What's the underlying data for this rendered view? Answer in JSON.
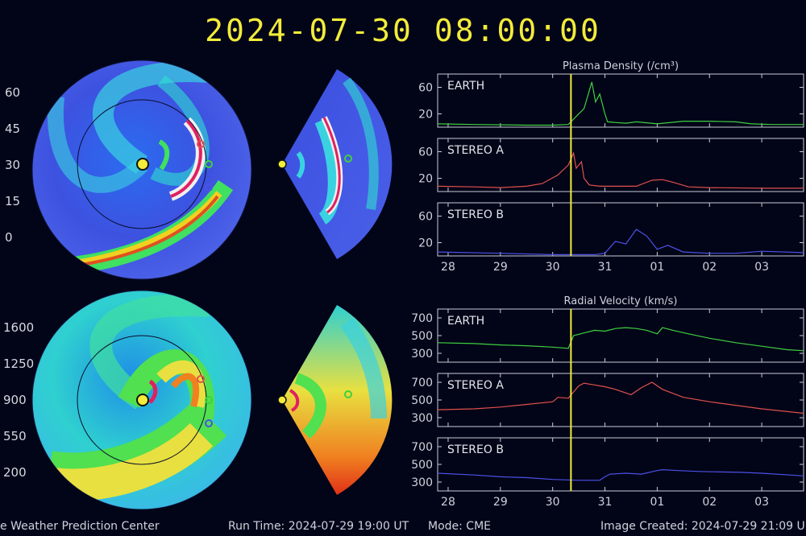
{
  "header": {
    "datetime": "2024-07-30  08:00:00"
  },
  "density_scale": [
    "60",
    "45",
    "30",
    "15",
    "0"
  ],
  "velocity_scale": [
    "1600",
    "1250",
    "900",
    "550",
    "200"
  ],
  "footer": {
    "center": "e Weather Prediction Center",
    "run_time": "Run Time: 2024-07-29 19:00 UT",
    "mode": "Mode: CME",
    "created": "Image Created: 2024-07-29 21:09 U"
  },
  "colors": {
    "earth": "#3fd03f",
    "stereo_a": "#e0524c",
    "stereo_b": "#4b52e6",
    "marker": "#f2ec3a"
  },
  "chart_data": [
    {
      "type": "line",
      "title": "Plasma Density (/cm³)",
      "x_ticks": [
        "28",
        "29",
        "30",
        "31",
        "01",
        "02",
        "03"
      ],
      "x_range": [
        27.8,
        34.8
      ],
      "current_time": 30.35,
      "panels": [
        {
          "name": "EARTH",
          "ylim": [
            0,
            80
          ],
          "y_ticks": [
            20,
            60
          ],
          "color": "#3fd03f",
          "x": [
            27.8,
            28.5,
            29.5,
            30.0,
            30.3,
            30.4,
            30.6,
            30.75,
            30.82,
            30.9,
            31.0,
            31.05,
            31.2,
            31.4,
            31.6,
            32.0,
            32.5,
            33.0,
            33.5,
            33.8,
            34.2,
            34.8
          ],
          "y": [
            5,
            4,
            3,
            3,
            4,
            12,
            28,
            68,
            38,
            50,
            20,
            8,
            7,
            6,
            8,
            5,
            9,
            9,
            8,
            5,
            4,
            4
          ]
        },
        {
          "name": "STEREO A",
          "ylim": [
            0,
            80
          ],
          "y_ticks": [
            20,
            60
          ],
          "color": "#e0524c",
          "x": [
            27.8,
            28.5,
            29.0,
            29.5,
            29.8,
            30.1,
            30.3,
            30.4,
            30.45,
            30.55,
            30.6,
            30.7,
            30.9,
            31.2,
            31.6,
            31.9,
            32.1,
            32.3,
            32.6,
            33.0,
            34.0,
            34.8
          ],
          "y": [
            8,
            7,
            6,
            8,
            12,
            25,
            40,
            58,
            35,
            45,
            20,
            10,
            8,
            8,
            8,
            17,
            18,
            14,
            7,
            6,
            5,
            5
          ]
        },
        {
          "name": "STEREO B",
          "ylim": [
            0,
            80
          ],
          "y_ticks": [
            20,
            60
          ],
          "color": "#4b52e6",
          "x": [
            27.8,
            29.0,
            30.0,
            30.8,
            31.0,
            31.2,
            31.4,
            31.6,
            31.8,
            32.0,
            32.2,
            32.5,
            33.0,
            33.5,
            34.0,
            34.8
          ],
          "y": [
            6,
            4,
            2,
            2,
            4,
            22,
            18,
            40,
            30,
            10,
            16,
            6,
            4,
            4,
            7,
            5
          ]
        }
      ]
    },
    {
      "type": "line",
      "title": "Radial Velocity (km/s)",
      "x_ticks": [
        "28",
        "29",
        "30",
        "31",
        "01",
        "02",
        "03"
      ],
      "x_range": [
        27.8,
        34.8
      ],
      "current_time": 30.35,
      "panels": [
        {
          "name": "EARTH",
          "ylim": [
            200,
            800
          ],
          "y_ticks": [
            300,
            500,
            700
          ],
          "color": "#3fd03f",
          "x": [
            27.8,
            28.5,
            29.0,
            29.5,
            30.0,
            30.3,
            30.4,
            30.6,
            30.8,
            31.0,
            31.2,
            31.4,
            31.6,
            31.8,
            32.0,
            32.1,
            32.3,
            32.6,
            33.0,
            33.5,
            34.0,
            34.5,
            34.8
          ],
          "y": [
            420,
            410,
            395,
            385,
            370,
            355,
            500,
            530,
            560,
            550,
            580,
            590,
            580,
            560,
            520,
            590,
            560,
            520,
            470,
            420,
            380,
            340,
            330
          ]
        },
        {
          "name": "STEREO A",
          "ylim": [
            200,
            800
          ],
          "y_ticks": [
            300,
            500,
            700
          ],
          "color": "#e0524c",
          "x": [
            27.8,
            28.5,
            29.0,
            29.5,
            30.0,
            30.1,
            30.3,
            30.5,
            30.6,
            30.8,
            31.0,
            31.2,
            31.5,
            31.7,
            31.9,
            32.1,
            32.5,
            33.0,
            33.5,
            34.0,
            34.8
          ],
          "y": [
            390,
            400,
            420,
            450,
            480,
            530,
            520,
            660,
            690,
            670,
            650,
            620,
            560,
            640,
            700,
            620,
            530,
            480,
            440,
            400,
            350
          ]
        },
        {
          "name": "STEREO B",
          "ylim": [
            200,
            800
          ],
          "y_ticks": [
            300,
            500,
            700
          ],
          "color": "#4b52e6",
          "x": [
            27.8,
            28.5,
            29.0,
            29.5,
            30.0,
            30.5,
            30.9,
            31.0,
            31.1,
            31.4,
            31.7,
            32.0,
            32.1,
            32.4,
            32.8,
            33.2,
            33.6,
            34.0,
            34.8
          ],
          "y": [
            400,
            380,
            360,
            350,
            330,
            320,
            320,
            360,
            390,
            400,
            390,
            430,
            440,
            430,
            420,
            415,
            410,
            400,
            370
          ]
        }
      ]
    }
  ]
}
